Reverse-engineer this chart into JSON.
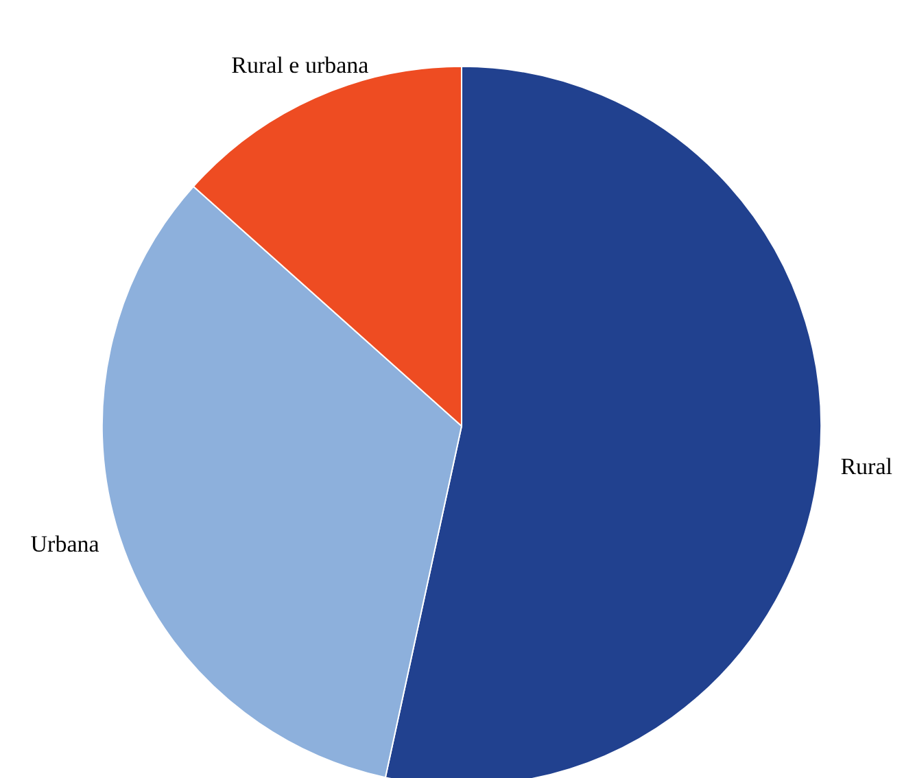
{
  "chart_data": {
    "type": "pie",
    "categories": [
      "Rural",
      "Urbana",
      "Rural e urbana"
    ],
    "values": [
      53.4,
      33.2,
      13.4
    ],
    "colors": [
      "#21418f",
      "#8db0dc",
      "#ee4c22"
    ]
  }
}
